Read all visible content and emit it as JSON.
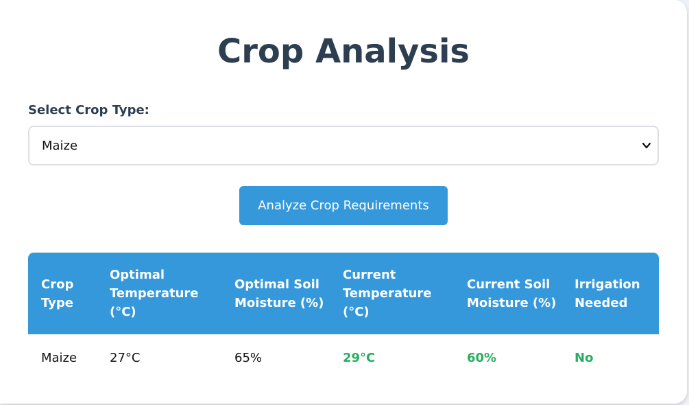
{
  "title": "Crop Analysis",
  "select": {
    "label": "Select Crop Type:",
    "value": "Maize"
  },
  "analyze_button": "Analyze Crop Requirements",
  "table": {
    "headers": [
      "Crop Type",
      "Optimal Temperature (°C)",
      "Optimal Soil Moisture (%)",
      "Current Temperature (°C)",
      "Current Soil Moisture (%)",
      "Irrigation Needed"
    ],
    "rows": [
      {
        "crop_type": "Maize",
        "optimal_temperature": "27°C",
        "optimal_soil_moisture": "65%",
        "current_temperature": "29°C",
        "current_soil_moisture": "60%",
        "irrigation_needed": "No"
      }
    ]
  },
  "colors": {
    "title": "#2c3e50",
    "accent": "#3498db",
    "status_good": "#27ae60"
  },
  "icons": {
    "select_chevron": "chevron-down-icon"
  }
}
